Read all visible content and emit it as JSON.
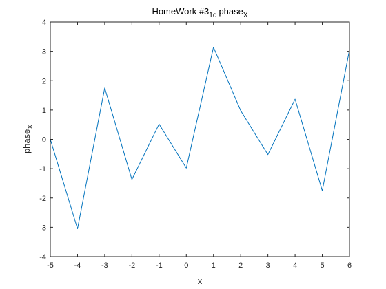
{
  "chart_data": {
    "type": "line",
    "title": {
      "main": "HomeWork #3",
      "subscript": "1c",
      "tail": " phase",
      "tail_subscript": "X"
    },
    "xlabel": "x",
    "ylabel": {
      "main": "phase",
      "subscript": "X"
    },
    "xlim": [
      -5,
      6
    ],
    "ylim": [
      -4,
      4
    ],
    "x_ticks": [
      -5,
      -4,
      -3,
      -2,
      -1,
      0,
      1,
      2,
      3,
      4,
      5,
      6
    ],
    "y_ticks": [
      -4,
      -3,
      -2,
      -1,
      0,
      1,
      2,
      3,
      4
    ],
    "grid": false,
    "box": true,
    "series": [
      {
        "color": "#0072bd",
        "x": [
          -5,
          -4,
          -3,
          -2,
          -1,
          0,
          1,
          2,
          3,
          4,
          5,
          6
        ],
        "y": [
          0.0,
          -3.05,
          1.75,
          -1.37,
          0.52,
          -0.98,
          3.14,
          0.98,
          -0.52,
          1.37,
          -1.75,
          3.05
        ]
      }
    ]
  }
}
